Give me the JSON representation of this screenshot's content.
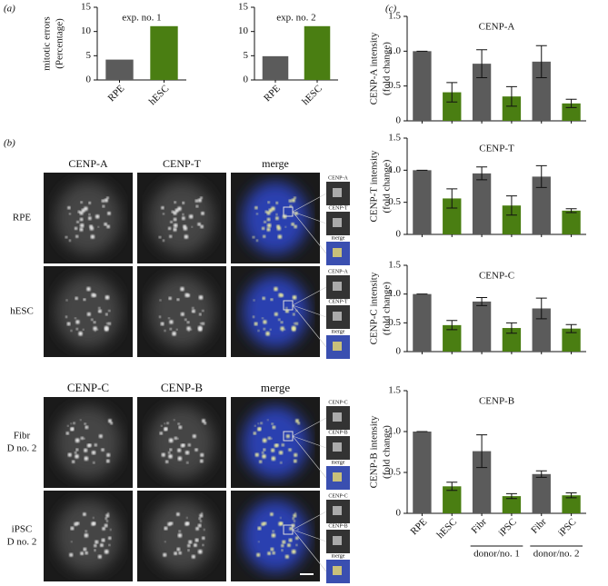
{
  "panel_labels": [
    "(a)",
    "(b)",
    "(c)"
  ],
  "chart_data": [
    {
      "type": "bar",
      "title": "exp. no. 1",
      "ylabel": [
        "mitotic errors",
        "(Percentage)"
      ],
      "categories": [
        "RPE",
        "hESC"
      ],
      "values": [
        4.2,
        11.1
      ],
      "colors": [
        "#5b5b5b",
        "#4a7e12"
      ],
      "ylim": [
        0,
        15
      ],
      "yticks": [
        0,
        5,
        10,
        15
      ]
    },
    {
      "type": "bar",
      "title": "exp. no. 2",
      "categories": [
        "RPE",
        "hESC"
      ],
      "values": [
        4.9,
        11.1
      ],
      "colors": [
        "#5b5b5b",
        "#4a7e12"
      ],
      "ylim": [
        0,
        15
      ],
      "yticks": [
        0,
        5,
        10,
        15
      ]
    },
    {
      "type": "bar",
      "title": "CENP-A",
      "ylabel": [
        "CENP-A intensity",
        "(fold change)"
      ],
      "categories": [
        null,
        null,
        null,
        null,
        null,
        null
      ],
      "values": [
        1.0,
        0.41,
        0.82,
        0.35,
        0.85,
        0.25
      ],
      "errors": [
        0,
        0.14,
        0.2,
        0.14,
        0.23,
        0.06
      ],
      "colors": [
        "#5b5b5b",
        "#4a7e12",
        "#5b5b5b",
        "#4a7e12",
        "#5b5b5b",
        "#4a7e12"
      ],
      "ylim": [
        0,
        1.5
      ],
      "yticks": [
        0,
        0.5,
        {
          "value": 1,
          "label": "1.0"
        },
        1.5
      ]
    },
    {
      "type": "bar",
      "title": "CENP-T",
      "ylabel": [
        "CENP-T intensity",
        "(fold change)"
      ],
      "categories": [
        null,
        null,
        null,
        null,
        null,
        null
      ],
      "values": [
        1.0,
        0.56,
        0.95,
        0.45,
        0.9,
        0.37
      ],
      "errors": [
        0,
        0.15,
        0.1,
        0.15,
        0.17,
        0.03
      ],
      "colors": [
        "#5b5b5b",
        "#4a7e12",
        "#5b5b5b",
        "#4a7e12",
        "#5b5b5b",
        "#4a7e12"
      ],
      "ylim": [
        0,
        1.5
      ],
      "yticks": [
        0,
        0.5,
        {
          "value": 1,
          "label": "1.0"
        },
        1.5
      ]
    },
    {
      "type": "bar",
      "title": "CENP-C",
      "ylabel": [
        "CENP-C intensity",
        "(fold change)"
      ],
      "categories": [
        null,
        null,
        null,
        null,
        null,
        null
      ],
      "values": [
        1.0,
        0.46,
        0.87,
        0.41,
        0.75,
        0.4
      ],
      "errors": [
        0,
        0.08,
        0.07,
        0.09,
        0.18,
        0.07
      ],
      "colors": [
        "#5b5b5b",
        "#4a7e12",
        "#5b5b5b",
        "#4a7e12",
        "#5b5b5b",
        "#4a7e12"
      ],
      "ylim": [
        0,
        1.5
      ],
      "yticks": [
        0,
        0.5,
        {
          "value": 1,
          "label": "1.0"
        },
        1.5
      ]
    },
    {
      "type": "bar",
      "title": "CENP-B",
      "ylabel": [
        "CENP-B intensity",
        "(fold change)"
      ],
      "categories": [
        "RPE",
        "hESC",
        "Fibr",
        "iPSC",
        "Fibr",
        "iPSC"
      ],
      "groups": [
        "donor/no. 1",
        "donor/no. 2"
      ],
      "values": [
        1.0,
        0.33,
        0.76,
        0.21,
        0.48,
        0.22
      ],
      "errors": [
        0,
        0.05,
        0.2,
        0.03,
        0.04,
        0.03
      ],
      "colors": [
        "#5b5b5b",
        "#4a7e12",
        "#5b5b5b",
        "#4a7e12",
        "#5b5b5b",
        "#4a7e12"
      ],
      "ylim": [
        0,
        1.5
      ],
      "yticks": [
        0,
        0.5,
        {
          "value": 1,
          "label": "1.0"
        },
        1.5
      ]
    }
  ],
  "micrographs": [
    {
      "columns": [
        "CENP-A",
        "CENP-T",
        "merge"
      ],
      "rows": [
        [
          "RPE"
        ],
        [
          "hESC"
        ]
      ],
      "insets": [
        "CENP-A",
        "CENP-T",
        "merge"
      ]
    },
    {
      "columns": [
        "CENP-C",
        "CENP-B",
        "merge"
      ],
      "rows": [
        [
          "Fibr",
          "D no. 2"
        ],
        [
          "iPSC",
          "D no. 2"
        ]
      ],
      "insets": [
        "CENP-C",
        "CENP-B",
        "merge"
      ]
    }
  ]
}
